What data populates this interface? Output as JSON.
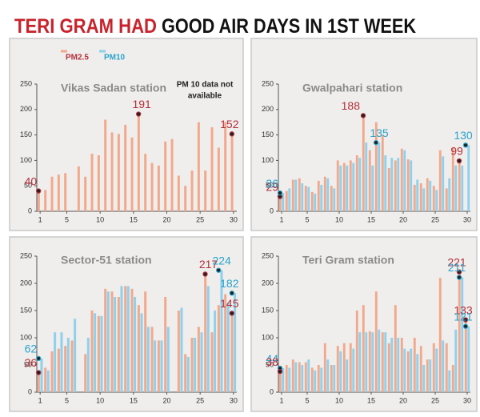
{
  "header": {
    "title_highlight": "TERI GRAM HAD",
    "title_rest": "GOOD AIR DAYS IN 1ST WEEK"
  },
  "chart_data": [
    {
      "type": "bar",
      "title": "Vikas Sadan station",
      "annotation": [
        "PM 10 data not",
        "available"
      ],
      "x": [
        1,
        2,
        3,
        4,
        5,
        6,
        7,
        8,
        9,
        10,
        11,
        12,
        13,
        14,
        15,
        16,
        17,
        18,
        19,
        20,
        21,
        22,
        23,
        24,
        25,
        26,
        27,
        28,
        29,
        30
      ],
      "xlim": [
        0.5,
        30.5
      ],
      "xticks": [
        1,
        5,
        10,
        15,
        20,
        25,
        30
      ],
      "ylim": [
        0,
        250
      ],
      "yticks": [
        0,
        50,
        100,
        150,
        200,
        250
      ],
      "series": [
        {
          "name": "PM2.5",
          "color": "#f2a88c",
          "label_color": "#b32f3b",
          "values": [
            40,
            42,
            68,
            72,
            75,
            null,
            88,
            68,
            113,
            110,
            180,
            155,
            152,
            170,
            145,
            191,
            113,
            95,
            90,
            137,
            142,
            70,
            50,
            80,
            175,
            80,
            165,
            125,
            175,
            152
          ]
        },
        {
          "name": "PM10",
          "color": "#8fd0ec",
          "label_color": "#2aa3cb",
          "values": [
            null,
            null,
            null,
            null,
            null,
            null,
            null,
            null,
            null,
            null,
            null,
            null,
            null,
            null,
            null,
            null,
            null,
            null,
            null,
            null,
            null,
            null,
            null,
            null,
            null,
            null,
            null,
            null,
            null,
            null
          ]
        }
      ],
      "labeled_points": [
        {
          "series": 0,
          "index": 0
        },
        {
          "series": 0,
          "index": 15
        },
        {
          "series": 0,
          "index": 29
        }
      ]
    },
    {
      "type": "bar",
      "title": "Gwalpahari station",
      "x": [
        1,
        2,
        3,
        4,
        5,
        6,
        7,
        8,
        9,
        10,
        11,
        12,
        13,
        14,
        15,
        16,
        17,
        18,
        19,
        20,
        21,
        22,
        23,
        24,
        25,
        26,
        27,
        28,
        29,
        30
      ],
      "xlim": [
        0.5,
        30.5
      ],
      "xticks": [
        1,
        5,
        10,
        15,
        20,
        25,
        30
      ],
      "ylim": [
        0,
        250
      ],
      "yticks": [
        0,
        50,
        100,
        150,
        200,
        250
      ],
      "series": [
        {
          "color": "#f2a88c",
          "label_color": "#b32f3b",
          "values": [
            29,
            40,
            62,
            65,
            50,
            38,
            60,
            68,
            50,
            100,
            95,
            100,
            110,
            188,
            120,
            175,
            150,
            85,
            100,
            123,
            102,
            52,
            55,
            65,
            50,
            120,
            45,
            125,
            99,
            null
          ]
        },
        {
          "color": "#8fd0ec",
          "label_color": "#2aa3cb",
          "values": [
            36,
            45,
            62,
            55,
            48,
            35,
            52,
            65,
            45,
            90,
            90,
            95,
            105,
            135,
            90,
            135,
            110,
            105,
            105,
            120,
            100,
            62,
            45,
            60,
            42,
            108,
            65,
            90,
            90,
            130
          ]
        }
      ],
      "labeled_points": [
        {
          "series": 0,
          "index": 0
        },
        {
          "series": 1,
          "index": 0
        },
        {
          "series": 0,
          "index": 13
        },
        {
          "series": 1,
          "index": 15
        },
        {
          "series": 0,
          "index": 28
        },
        {
          "series": 1,
          "index": 29
        }
      ]
    },
    {
      "type": "bar",
      "title": "Sector-51 station",
      "x": [
        1,
        2,
        3,
        4,
        5,
        6,
        7,
        8,
        9,
        10,
        11,
        12,
        13,
        14,
        15,
        16,
        17,
        18,
        19,
        20,
        21,
        22,
        23,
        24,
        25,
        26,
        27,
        28,
        29,
        30
      ],
      "xlim": [
        0.5,
        30.5
      ],
      "xticks": [
        1,
        5,
        10,
        15,
        20,
        25,
        30
      ],
      "ylim": [
        0,
        250
      ],
      "yticks": [
        0,
        50,
        100,
        150,
        200,
        250
      ],
      "series": [
        {
          "color": "#f2a88c",
          "label_color": "#b32f3b",
          "values": [
            36,
            45,
            75,
            80,
            85,
            95,
            null,
            70,
            150,
            140,
            190,
            185,
            175,
            195,
            190,
            160,
            185,
            120,
            95,
            175,
            null,
            150,
            70,
            100,
            120,
            217,
            110,
            160,
            180,
            145
          ]
        },
        {
          "color": "#8fd0ec",
          "label_color": "#2aa3cb",
          "values": [
            62,
            40,
            110,
            110,
            100,
            135,
            null,
            100,
            145,
            140,
            185,
            175,
            195,
            195,
            175,
            145,
            120,
            95,
            95,
            120,
            null,
            155,
            65,
            100,
            110,
            195,
            150,
            224,
            165,
            182
          ]
        }
      ],
      "labeled_points": [
        {
          "series": 0,
          "index": 0
        },
        {
          "series": 1,
          "index": 0
        },
        {
          "series": 0,
          "index": 25
        },
        {
          "series": 1,
          "index": 27
        },
        {
          "series": 1,
          "index": 29
        },
        {
          "series": 0,
          "index": 29
        }
      ]
    },
    {
      "type": "bar",
      "title": "Teri Gram station",
      "x": [
        1,
        2,
        3,
        4,
        5,
        6,
        7,
        8,
        9,
        10,
        11,
        12,
        13,
        14,
        15,
        16,
        17,
        18,
        19,
        20,
        21,
        22,
        23,
        24,
        25,
        26,
        27,
        28,
        29,
        30
      ],
      "xlim": [
        0.5,
        30.5
      ],
      "xticks": [
        1,
        5,
        10,
        15,
        20,
        25,
        30
      ],
      "ylim": [
        0,
        250
      ],
      "yticks": [
        0,
        50,
        100,
        150,
        200,
        250
      ],
      "series": [
        {
          "color": "#f2a88c",
          "label_color": "#b32f3b",
          "values": [
            38,
            50,
            60,
            55,
            55,
            45,
            50,
            90,
            50,
            85,
            90,
            90,
            150,
            160,
            112,
            185,
            110,
            90,
            160,
            100,
            75,
            100,
            85,
            60,
            90,
            210,
            90,
            50,
            221,
            133
          ]
        },
        {
          "color": "#8fd0ec",
          "label_color": "#2aa3cb",
          "values": [
            44,
            45,
            55,
            50,
            60,
            40,
            45,
            60,
            50,
            75,
            60,
            80,
            110,
            110,
            110,
            115,
            110,
            100,
            100,
            80,
            80,
            70,
            50,
            60,
            80,
            95,
            40,
            115,
            211,
            121
          ]
        }
      ],
      "labeled_points": [
        {
          "series": 1,
          "index": 0
        },
        {
          "series": 0,
          "index": 0
        },
        {
          "series": 0,
          "index": 28
        },
        {
          "series": 1,
          "index": 28
        },
        {
          "series": 0,
          "index": 29
        },
        {
          "series": 1,
          "index": 29
        }
      ]
    }
  ]
}
